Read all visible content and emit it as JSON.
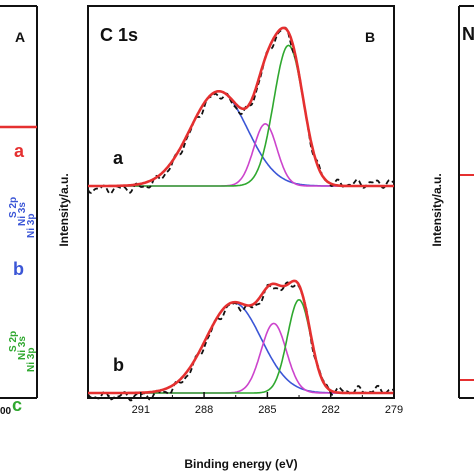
{
  "left_panel": {
    "letter": "A",
    "trace_labels": [
      {
        "label": "a",
        "color": "#e53030"
      },
      {
        "label": "b",
        "color": "#3b56d6"
      },
      {
        "label": "c",
        "color": "#2fa82f"
      }
    ],
    "peak_labels": [
      "S 2p",
      "Ni 3s",
      "Ni 3p"
    ],
    "tick_fragment": "00"
  },
  "right_panel": {
    "letter_fragment": "N",
    "ylabel": "Intensity/a.u."
  },
  "chart_data": {
    "type": "line",
    "title": "C 1s",
    "panel_letter": "B",
    "xlabel": "Binding energy (eV)",
    "ylabel": "Intensity/a.u.",
    "xlim": [
      293.5,
      279
    ],
    "x_reversed": true,
    "xticks": [
      291,
      288,
      285,
      282,
      279
    ],
    "xtick_labels": [
      "291",
      "288",
      "285",
      "282",
      "279"
    ],
    "grid": false,
    "legend": "none",
    "colors": {
      "experimental": "#111111",
      "envelope": "#e53030",
      "peak_blue": "#3b56d6",
      "peak_magenta": "#cc44cc",
      "peak_green": "#2fa82f"
    },
    "spectra": [
      {
        "label": "a",
        "peaks": [
          {
            "color": "peak_blue",
            "center": 287.3,
            "height": 0.64,
            "width": 1.35
          },
          {
            "color": "peak_magenta",
            "center": 285.1,
            "height": 0.42,
            "width": 0.55
          },
          {
            "color": "peak_green",
            "center": 284.0,
            "height": 0.95,
            "width": 0.7
          }
        ]
      },
      {
        "label": "b",
        "peaks": [
          {
            "color": "peak_blue",
            "center": 286.6,
            "height": 0.61,
            "width": 1.3
          },
          {
            "color": "peak_magenta",
            "center": 284.7,
            "height": 0.47,
            "width": 0.6
          },
          {
            "color": "peak_green",
            "center": 283.5,
            "height": 0.63,
            "width": 0.55
          }
        ]
      }
    ]
  }
}
